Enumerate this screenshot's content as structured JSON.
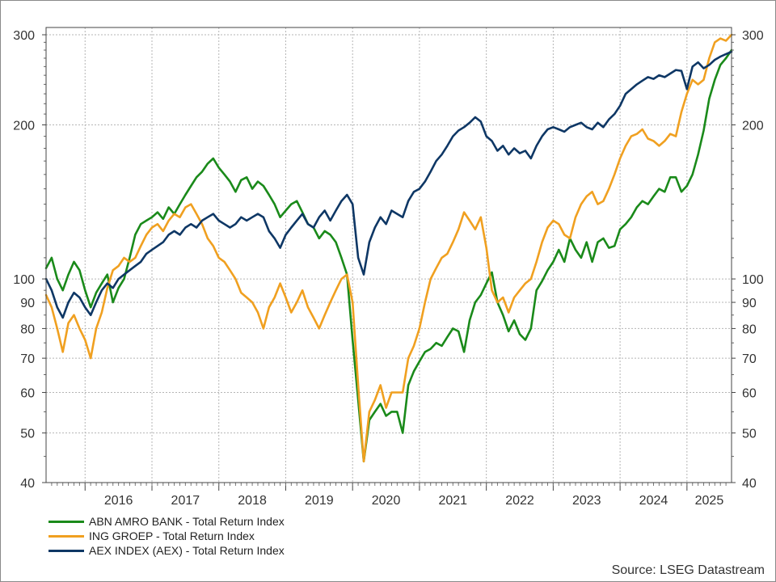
{
  "chart_data": {
    "type": "line",
    "title": "",
    "xlabel": "",
    "ylabel": "",
    "y_scale": "log",
    "ylim": [
      40,
      310
    ],
    "y_ticks": [
      40,
      50,
      60,
      70,
      80,
      90,
      100,
      200,
      300
    ],
    "y_axis_sides": [
      "left",
      "right"
    ],
    "x_range": [
      "2015-06",
      "2025-09"
    ],
    "x_year_labels": [
      "2016",
      "2017",
      "2018",
      "2019",
      "2020",
      "2021",
      "2022",
      "2023",
      "2024",
      "2025"
    ],
    "grid": true,
    "legend_position": "bottom-left",
    "series": [
      {
        "name": "ABN AMRO BANK - Total Return Index",
        "color": "#1a8a1a",
        "x": [
          "2015-06",
          "2015-07",
          "2015-08",
          "2015-09",
          "2015-10",
          "2015-11",
          "2015-12",
          "2016-01",
          "2016-02",
          "2016-03",
          "2016-04",
          "2016-05",
          "2016-06",
          "2016-07",
          "2016-08",
          "2016-09",
          "2016-10",
          "2016-11",
          "2016-12",
          "2017-01",
          "2017-02",
          "2017-03",
          "2017-04",
          "2017-05",
          "2017-06",
          "2017-07",
          "2017-08",
          "2017-09",
          "2017-10",
          "2017-11",
          "2017-12",
          "2018-01",
          "2018-02",
          "2018-03",
          "2018-04",
          "2018-05",
          "2018-06",
          "2018-07",
          "2018-08",
          "2018-09",
          "2018-10",
          "2018-11",
          "2018-12",
          "2019-01",
          "2019-02",
          "2019-03",
          "2019-04",
          "2019-05",
          "2019-06",
          "2019-07",
          "2019-08",
          "2019-09",
          "2019-10",
          "2019-11",
          "2019-12",
          "2020-01",
          "2020-02",
          "2020-03",
          "2020-04",
          "2020-05",
          "2020-06",
          "2020-07",
          "2020-08",
          "2020-09",
          "2020-10",
          "2020-11",
          "2020-12",
          "2021-01",
          "2021-02",
          "2021-03",
          "2021-04",
          "2021-05",
          "2021-06",
          "2021-07",
          "2021-08",
          "2021-09",
          "2021-10",
          "2021-11",
          "2021-12",
          "2022-01",
          "2022-02",
          "2022-03",
          "2022-04",
          "2022-05",
          "2022-06",
          "2022-07",
          "2022-08",
          "2022-09",
          "2022-10",
          "2022-11",
          "2022-12",
          "2023-01",
          "2023-02",
          "2023-03",
          "2023-04",
          "2023-05",
          "2023-06",
          "2023-07",
          "2023-08",
          "2023-09",
          "2023-10",
          "2023-11",
          "2023-12",
          "2024-01",
          "2024-02",
          "2024-03",
          "2024-04",
          "2024-05",
          "2024-06",
          "2024-07",
          "2024-08",
          "2024-09",
          "2024-10",
          "2024-11",
          "2024-12",
          "2025-01",
          "2025-02",
          "2025-03",
          "2025-04",
          "2025-05",
          "2025-06",
          "2025-07",
          "2025-08",
          "2025-09"
        ],
        "values": [
          105,
          110,
          100,
          95,
          102,
          108,
          104,
          95,
          88,
          94,
          98,
          102,
          90,
          96,
          100,
          110,
          122,
          128,
          130,
          132,
          135,
          131,
          138,
          134,
          140,
          146,
          152,
          158,
          162,
          168,
          172,
          165,
          160,
          155,
          148,
          156,
          158,
          150,
          155,
          152,
          146,
          140,
          132,
          136,
          140,
          142,
          135,
          128,
          126,
          120,
          124,
          122,
          118,
          110,
          102,
          76,
          58,
          44,
          53,
          55,
          57,
          54,
          55,
          55,
          50,
          62,
          66,
          69,
          72,
          73,
          75,
          74,
          77,
          80,
          79,
          72,
          83,
          90,
          93,
          98,
          103,
          90,
          85,
          79,
          83,
          78,
          76,
          80,
          95,
          99,
          104,
          108,
          114,
          108,
          120,
          114,
          110,
          118,
          108,
          118,
          120,
          115,
          116,
          125,
          128,
          132,
          138,
          142,
          140,
          145,
          150,
          148,
          158,
          158,
          148,
          152,
          160,
          175,
          195,
          225,
          245,
          262,
          270,
          280
        ]
      },
      {
        "name": "ING GROEP - Total Return Index",
        "color": "#f0a020",
        "x": [
          "2015-06",
          "2015-07",
          "2015-08",
          "2015-09",
          "2015-10",
          "2015-11",
          "2015-12",
          "2016-01",
          "2016-02",
          "2016-03",
          "2016-04",
          "2016-05",
          "2016-06",
          "2016-07",
          "2016-08",
          "2016-09",
          "2016-10",
          "2016-11",
          "2016-12",
          "2017-01",
          "2017-02",
          "2017-03",
          "2017-04",
          "2017-05",
          "2017-06",
          "2017-07",
          "2017-08",
          "2017-09",
          "2017-10",
          "2017-11",
          "2017-12",
          "2018-01",
          "2018-02",
          "2018-03",
          "2018-04",
          "2018-05",
          "2018-06",
          "2018-07",
          "2018-08",
          "2018-09",
          "2018-10",
          "2018-11",
          "2018-12",
          "2019-01",
          "2019-02",
          "2019-03",
          "2019-04",
          "2019-05",
          "2019-06",
          "2019-07",
          "2019-08",
          "2019-09",
          "2019-10",
          "2019-11",
          "2019-12",
          "2020-01",
          "2020-02",
          "2020-03",
          "2020-04",
          "2020-05",
          "2020-06",
          "2020-07",
          "2020-08",
          "2020-09",
          "2020-10",
          "2020-11",
          "2020-12",
          "2021-01",
          "2021-02",
          "2021-03",
          "2021-04",
          "2021-05",
          "2021-06",
          "2021-07",
          "2021-08",
          "2021-09",
          "2021-10",
          "2021-11",
          "2021-12",
          "2022-01",
          "2022-02",
          "2022-03",
          "2022-04",
          "2022-05",
          "2022-06",
          "2022-07",
          "2022-08",
          "2022-09",
          "2022-10",
          "2022-11",
          "2022-12",
          "2023-01",
          "2023-02",
          "2023-03",
          "2023-04",
          "2023-05",
          "2023-06",
          "2023-07",
          "2023-08",
          "2023-09",
          "2023-10",
          "2023-11",
          "2023-12",
          "2024-01",
          "2024-02",
          "2024-03",
          "2024-04",
          "2024-05",
          "2024-06",
          "2024-07",
          "2024-08",
          "2024-09",
          "2024-10",
          "2024-11",
          "2024-12",
          "2025-01",
          "2025-02",
          "2025-03",
          "2025-04",
          "2025-05",
          "2025-06",
          "2025-07",
          "2025-08",
          "2025-09"
        ],
        "values": [
          93,
          88,
          80,
          72,
          82,
          85,
          80,
          76,
          70,
          80,
          86,
          96,
          104,
          106,
          110,
          108,
          110,
          116,
          122,
          126,
          128,
          124,
          130,
          134,
          132,
          138,
          140,
          134,
          128,
          120,
          116,
          110,
          108,
          104,
          100,
          94,
          92,
          90,
          86,
          80,
          88,
          92,
          98,
          92,
          86,
          90,
          95,
          88,
          84,
          80,
          85,
          90,
          95,
          100,
          102,
          90,
          62,
          44,
          55,
          58,
          62,
          56,
          60,
          60,
          60,
          70,
          74,
          80,
          90,
          100,
          105,
          110,
          112,
          118,
          125,
          135,
          130,
          125,
          132,
          115,
          95,
          90,
          92,
          86,
          92,
          95,
          98,
          100,
          108,
          118,
          126,
          130,
          128,
          122,
          120,
          132,
          140,
          145,
          148,
          140,
          142,
          150,
          160,
          172,
          182,
          190,
          192,
          196,
          188,
          186,
          182,
          186,
          192,
          190,
          212,
          230,
          245,
          240,
          245,
          270,
          290,
          295,
          292,
          300
        ]
      },
      {
        "name": "AEX INDEX (AEX) - Total Return Index",
        "color": "#0e3765",
        "x": [
          "2015-06",
          "2015-07",
          "2015-08",
          "2015-09",
          "2015-10",
          "2015-11",
          "2015-12",
          "2016-01",
          "2016-02",
          "2016-03",
          "2016-04",
          "2016-05",
          "2016-06",
          "2016-07",
          "2016-08",
          "2016-09",
          "2016-10",
          "2016-11",
          "2016-12",
          "2017-01",
          "2017-02",
          "2017-03",
          "2017-04",
          "2017-05",
          "2017-06",
          "2017-07",
          "2017-08",
          "2017-09",
          "2017-10",
          "2017-11",
          "2017-12",
          "2018-01",
          "2018-02",
          "2018-03",
          "2018-04",
          "2018-05",
          "2018-06",
          "2018-07",
          "2018-08",
          "2018-09",
          "2018-10",
          "2018-11",
          "2018-12",
          "2019-01",
          "2019-02",
          "2019-03",
          "2019-04",
          "2019-05",
          "2019-06",
          "2019-07",
          "2019-08",
          "2019-09",
          "2019-10",
          "2019-11",
          "2019-12",
          "2020-01",
          "2020-02",
          "2020-03",
          "2020-04",
          "2020-05",
          "2020-06",
          "2020-07",
          "2020-08",
          "2020-09",
          "2020-10",
          "2020-11",
          "2020-12",
          "2021-01",
          "2021-02",
          "2021-03",
          "2021-04",
          "2021-05",
          "2021-06",
          "2021-07",
          "2021-08",
          "2021-09",
          "2021-10",
          "2021-11",
          "2021-12",
          "2022-01",
          "2022-02",
          "2022-03",
          "2022-04",
          "2022-05",
          "2022-06",
          "2022-07",
          "2022-08",
          "2022-09",
          "2022-10",
          "2022-11",
          "2022-12",
          "2023-01",
          "2023-02",
          "2023-03",
          "2023-04",
          "2023-05",
          "2023-06",
          "2023-07",
          "2023-08",
          "2023-09",
          "2023-10",
          "2023-11",
          "2023-12",
          "2024-01",
          "2024-02",
          "2024-03",
          "2024-04",
          "2024-05",
          "2024-06",
          "2024-07",
          "2024-08",
          "2024-09",
          "2024-10",
          "2024-11",
          "2024-12",
          "2025-01",
          "2025-02",
          "2025-03",
          "2025-04",
          "2025-05",
          "2025-06",
          "2025-07",
          "2025-08",
          "2025-09"
        ],
        "values": [
          100,
          95,
          88,
          84,
          90,
          94,
          92,
          88,
          85,
          90,
          95,
          98,
          96,
          100,
          102,
          104,
          106,
          108,
          112,
          114,
          116,
          118,
          122,
          124,
          122,
          126,
          128,
          126,
          130,
          132,
          134,
          130,
          128,
          126,
          128,
          132,
          130,
          132,
          134,
          132,
          124,
          120,
          115,
          122,
          126,
          130,
          134,
          128,
          126,
          132,
          136,
          130,
          136,
          142,
          146,
          140,
          110,
          102,
          118,
          126,
          132,
          128,
          136,
          134,
          132,
          142,
          148,
          150,
          155,
          162,
          170,
          175,
          182,
          190,
          195,
          198,
          202,
          207,
          203,
          190,
          186,
          178,
          182,
          175,
          180,
          176,
          178,
          172,
          182,
          190,
          196,
          198,
          196,
          194,
          198,
          200,
          202,
          198,
          196,
          202,
          198,
          205,
          210,
          218,
          230,
          235,
          240,
          244,
          248,
          246,
          250,
          248,
          252,
          256,
          255,
          235,
          260,
          265,
          258,
          262,
          268,
          272,
          275,
          278
        ]
      }
    ]
  },
  "source": "Source: LSEG Datastream"
}
